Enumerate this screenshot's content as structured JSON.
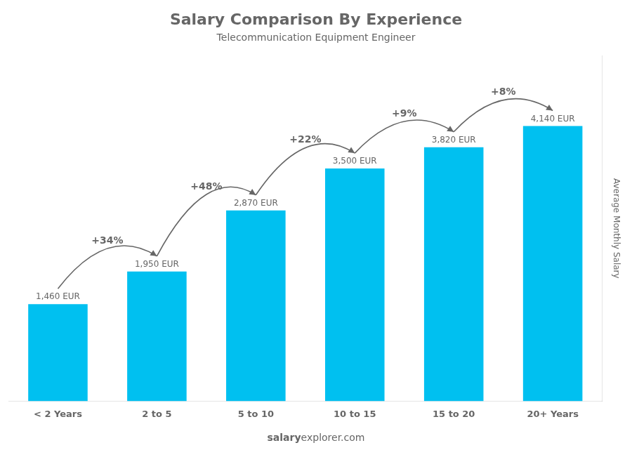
{
  "chart_data": {
    "type": "bar",
    "title": "Salary Comparison By Experience",
    "subtitle": "Telecommunication Equipment Engineer",
    "ylabel": "Average Monthly Salary",
    "categories": [
      "< 2 Years",
      "2 to 5",
      "5 to 10",
      "10 to 15",
      "15 to 20",
      "20+ Years"
    ],
    "values": [
      1460,
      1950,
      2870,
      3500,
      3820,
      4140
    ],
    "value_labels": [
      "1,460 EUR",
      "1,950 EUR",
      "2,870 EUR",
      "3,500 EUR",
      "3,820 EUR",
      "4,140 EUR"
    ],
    "data_labels": true,
    "annotations": [
      "+34%",
      "+48%",
      "+22%",
      "+9%",
      "+8%"
    ],
    "footer": [
      "salary",
      "explorer.com"
    ],
    "color": "#00c0f0",
    "ylim": [
      0,
      5200
    ],
    "grid": false,
    "tick_labels": "x"
  }
}
